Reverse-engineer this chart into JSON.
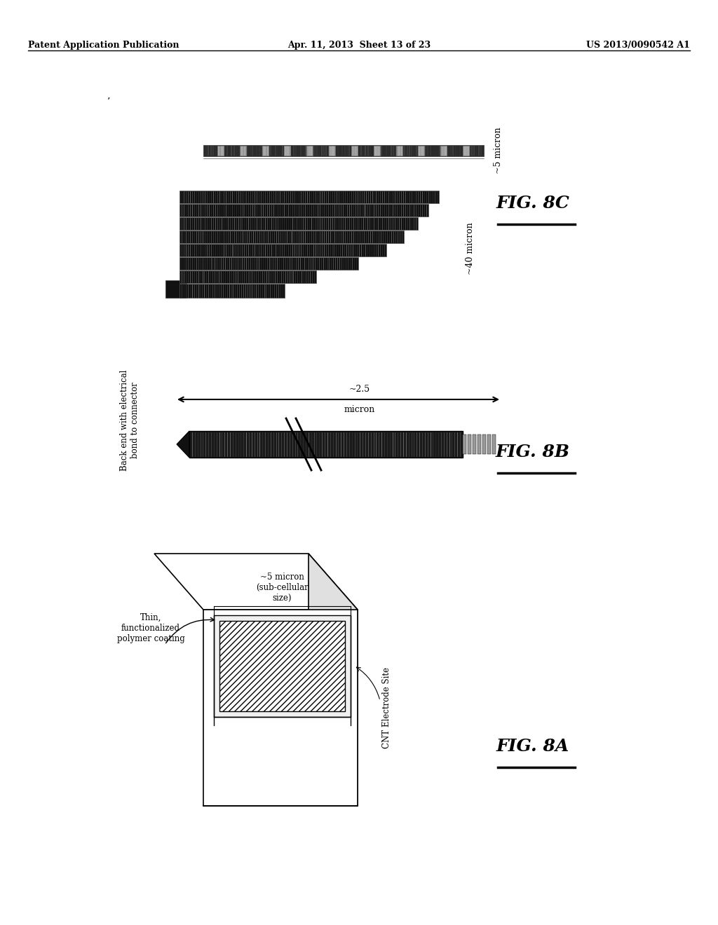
{
  "bg_color": "#ffffff",
  "header_left": "Patent Application Publication",
  "header_mid": "Apr. 11, 2013  Sheet 13 of 23",
  "header_right": "US 2013/0090542 A1",
  "fig8A_label": "FIG. 8A",
  "fig8B_label": "FIG. 8B",
  "fig8C_label": "FIG. 8C"
}
